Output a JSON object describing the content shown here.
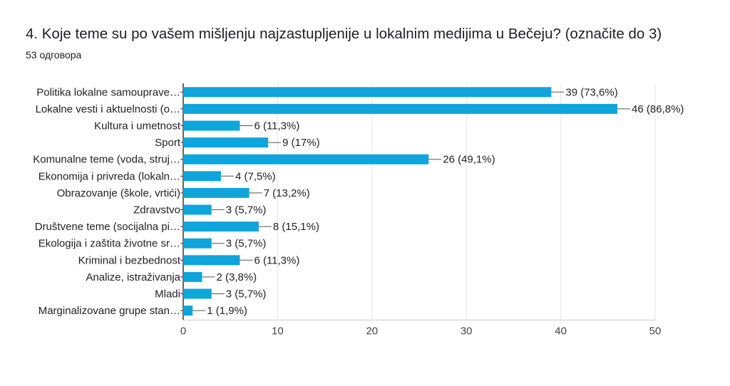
{
  "header": {
    "title": "4. Koje teme su po vašem mišljenju najzastupljenije u lokalnim medijima u Bečeju? (označite do 3)",
    "response_count": "53 одговора"
  },
  "chart_data": {
    "type": "bar",
    "orientation": "horizontal",
    "categories": [
      "Politika lokalne samouprave…",
      "Lokalne vesti i aktuelnosti (o…",
      "Kultura i umetnost",
      "Sport",
      "Komunalne teme (voda, struj…",
      "Ekonomija i privreda (lokaln…",
      "Obrazovanje (škole, vrtići)",
      "Zdravstvo",
      "Društvene teme (socijalna pi…",
      "Ekologija i zaštita životne sr…",
      "Kriminal i bezbednost",
      "Analize, istraživanja",
      "Mladi",
      "Marginalizovane grupe stan…"
    ],
    "values": [
      39,
      46,
      6,
      9,
      26,
      4,
      7,
      3,
      8,
      3,
      6,
      2,
      3,
      1
    ],
    "value_labels": [
      "39 (73,6%)",
      "46 (86,8%)",
      "6 (11,3%)",
      "9 (17%)",
      "26 (49,1%)",
      "4 (7,5%)",
      "7 (13,2%)",
      "3 (5,7%)",
      "8 (15,1%)",
      "3 (5,7%)",
      "6 (11,3%)",
      "2 (3,8%)",
      "3 (5,7%)",
      "1 (1,9%)"
    ],
    "xlim": [
      0,
      50
    ],
    "xticks": [
      0,
      10,
      20,
      30,
      40,
      50
    ],
    "grid": true,
    "bar_color": "#0ea5dc",
    "grid_color": "#e6e6e6",
    "axis_color": "#333333"
  }
}
